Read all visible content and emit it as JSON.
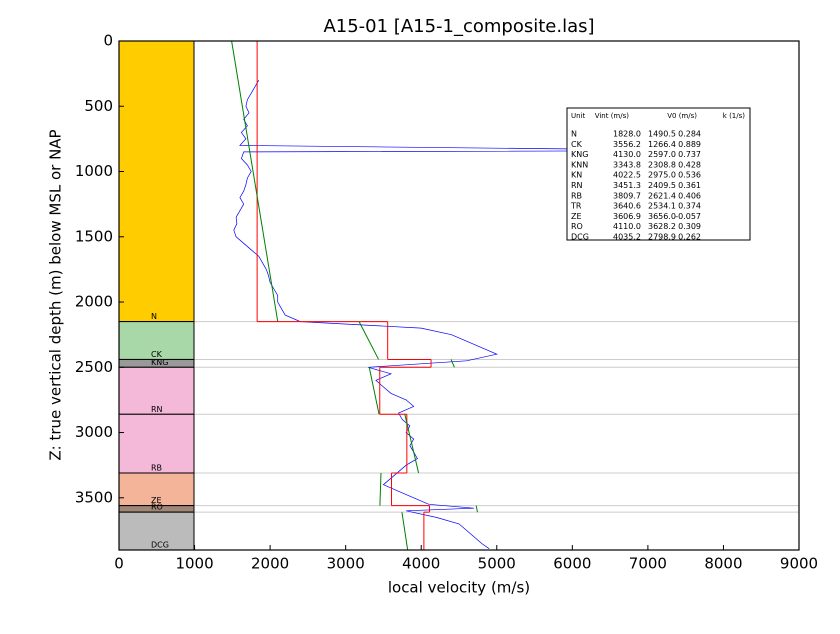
{
  "chart_data": {
    "type": "well-log",
    "title": "A15-01 [A15-1_composite.las]",
    "xlabel": "local velocity (m/s)",
    "ylabel": "Z: true vertical depth (m) below MSL or NAP",
    "xlim": [
      0,
      9000
    ],
    "xticks": [
      0,
      1000,
      2000,
      3000,
      4000,
      5000,
      6000,
      7000,
      8000,
      9000
    ],
    "ylim": [
      0,
      3900
    ],
    "yticks": [
      0,
      500,
      1000,
      1500,
      2000,
      2500,
      3000,
      3500
    ],
    "table_header": [
      "Unit",
      "Vint (m/s)",
      "V0 (m/s)",
      "k (1/s)"
    ],
    "units": {
      "names": [
        "N",
        "CK",
        "KNG",
        "KNN",
        "KN",
        "RN",
        "RB",
        "TR",
        "ZE",
        "RO",
        "DCG"
      ],
      "tops": [
        0,
        2150,
        2440,
        null,
        null,
        2500,
        2860,
        null,
        3310,
        3560,
        3610
      ],
      "bases": [
        2150,
        2440,
        2500,
        null,
        null,
        2860,
        3310,
        null,
        3560,
        3610,
        3900
      ],
      "colors": [
        "#ffcc00",
        "#a8d8a8",
        "#999999",
        null,
        null,
        "#f4b8d8",
        "#f4b8d8",
        null,
        "#f4b49a",
        "#a08878",
        "#bbbbbb"
      ],
      "vint": {
        "values": [
          1828.0,
          3556.2,
          4130.0,
          3343.8,
          4022.5,
          3451.3,
          3809.7,
          3640.6,
          3606.9,
          4110.0,
          4035.2
        ],
        "value_labels": [
          "1828.0",
          "3556.2",
          "4130.0",
          "3343.8",
          "4022.5",
          "3451.3",
          "3809.7",
          "3640.6",
          "3606.9",
          "4110.0",
          "4035.2"
        ]
      },
      "v0": {
        "values": [
          1490.5,
          1266.4,
          2597.0,
          2308.8,
          2975.0,
          2409.5,
          2621.4,
          2534.1,
          3656.0,
          3628.2,
          2798.9
        ],
        "value_labels": [
          "1490.5",
          "1266.4",
          "2597.0",
          "2308.8",
          "2975.0",
          "2409.5",
          "2621.4",
          "2534.1",
          "3656.0",
          "3628.2",
          "2798.9"
        ]
      },
      "k": {
        "values": [
          0.284,
          0.889,
          0.737,
          0.428,
          0.536,
          0.361,
          0.406,
          0.374,
          -0.057,
          0.309,
          0.262
        ],
        "value_labels": [
          "0.284",
          "0.889",
          "0.737",
          "0.428",
          "0.536",
          "0.361",
          "0.406",
          "0.374",
          "-0.057",
          "0.309",
          "0.262"
        ]
      }
    },
    "log": {
      "color": "#0000ff",
      "depth": [
        300,
        350,
        400,
        450,
        500,
        550,
        600,
        650,
        700,
        750,
        800,
        840,
        850,
        900,
        950,
        1000,
        1050,
        1100,
        1150,
        1200,
        1250,
        1300,
        1350,
        1400,
        1450,
        1500,
        1550,
        1600,
        1650,
        1700,
        1750,
        1800,
        1850,
        1900,
        1950,
        2000,
        2050,
        2100,
        2150,
        2200,
        2250,
        2300,
        2350,
        2400,
        2450,
        2500,
        2550,
        2600,
        2650,
        2700,
        2750,
        2800,
        2850,
        2900,
        2950,
        3000,
        3050,
        3100,
        3150,
        3200,
        3250,
        3300,
        3350,
        3400,
        3450,
        3500,
        3550,
        3580,
        3600,
        3650,
        3700,
        3750,
        3800,
        3850,
        3890
      ],
      "velocity": [
        1850,
        1800,
        1750,
        1700,
        1680,
        1720,
        1650,
        1700,
        1620,
        1680,
        1600,
        8000,
        1650,
        1620,
        1700,
        1750,
        1700,
        1680,
        1650,
        1600,
        1650,
        1600,
        1550,
        1560,
        1520,
        1550,
        1650,
        1750,
        1850,
        1900,
        1950,
        1980,
        2000,
        2050,
        2100,
        2100,
        2150,
        2200,
        2400,
        4000,
        4400,
        4600,
        4800,
        5000,
        4600,
        3300,
        3600,
        3400,
        3500,
        3600,
        3800,
        3900,
        3700,
        3750,
        3850,
        3800,
        3900,
        3850,
        3900,
        3950,
        3800,
        3700,
        3600,
        3500,
        3700,
        3900,
        4100,
        4700,
        3800,
        4200,
        4500,
        4600,
        4700,
        4800,
        4900
      ]
    },
    "interval_color": "#ff0000",
    "trend_color": "#008000"
  }
}
